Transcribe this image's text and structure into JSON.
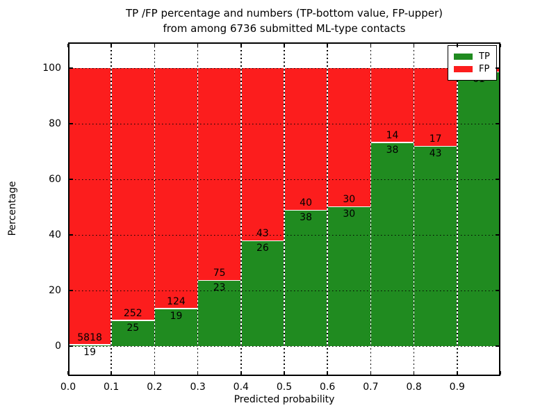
{
  "title": {
    "line1": "TP /FP percentage and numbers (TP-bottom value, FP-upper)",
    "line2": "from among 6736 submitted ML-type contacts"
  },
  "axes": {
    "xlabel": "Predicted probability",
    "ylabel": "Percentage",
    "xticks": [
      "0.0",
      "0.1",
      "0.2",
      "0.3",
      "0.4",
      "0.5",
      "0.6",
      "0.7",
      "0.8",
      "0.9"
    ],
    "yticks": [
      "0",
      "20",
      "40",
      "60",
      "80",
      "100"
    ]
  },
  "legend": {
    "items": [
      {
        "label": "TP",
        "color": "#208b20"
      },
      {
        "label": "FP",
        "color": "#fc1d1d"
      }
    ]
  },
  "colors": {
    "tp": "#208b20",
    "fp": "#fc1d1d",
    "grid": "#000000",
    "background": "#ffffff"
  },
  "chart_data": {
    "type": "bar",
    "stacked": true,
    "title": "TP /FP percentage and numbers (TP-bottom value, FP-upper) from among 6736 submitted ML-type contacts",
    "xlabel": "Predicted probability",
    "ylabel": "Percentage",
    "xlim": [
      0.0,
      1.0
    ],
    "ylim": [
      0,
      100
    ],
    "grid": true,
    "legend_position": "upper right",
    "bin_width": 0.1,
    "categories": [
      "0.0-0.1",
      "0.1-0.2",
      "0.2-0.3",
      "0.3-0.4",
      "0.4-0.5",
      "0.5-0.6",
      "0.6-0.7",
      "0.7-0.8",
      "0.8-0.9",
      "0.9-1.0"
    ],
    "series": [
      {
        "name": "TP",
        "color": "#208b20",
        "values": [
          19,
          25,
          19,
          23,
          26,
          38,
          30,
          38,
          43,
          61
        ]
      },
      {
        "name": "FP",
        "color": "#fc1d1d",
        "values": [
          5818,
          252,
          124,
          75,
          43,
          40,
          30,
          14,
          17,
          1
        ]
      }
    ],
    "tp_percent": [
      0.33,
      9.03,
      13.29,
      23.47,
      37.68,
      48.72,
      50.0,
      73.08,
      71.67,
      98.39
    ],
    "bar_value_labels": {
      "tp": [
        "19",
        "25",
        "19",
        "23",
        "26",
        "38",
        "30",
        "38",
        "43",
        "61"
      ],
      "fp": [
        "5818",
        "252",
        "124",
        "75",
        "43",
        "40",
        "30",
        "14",
        "17",
        ""
      ]
    }
  }
}
